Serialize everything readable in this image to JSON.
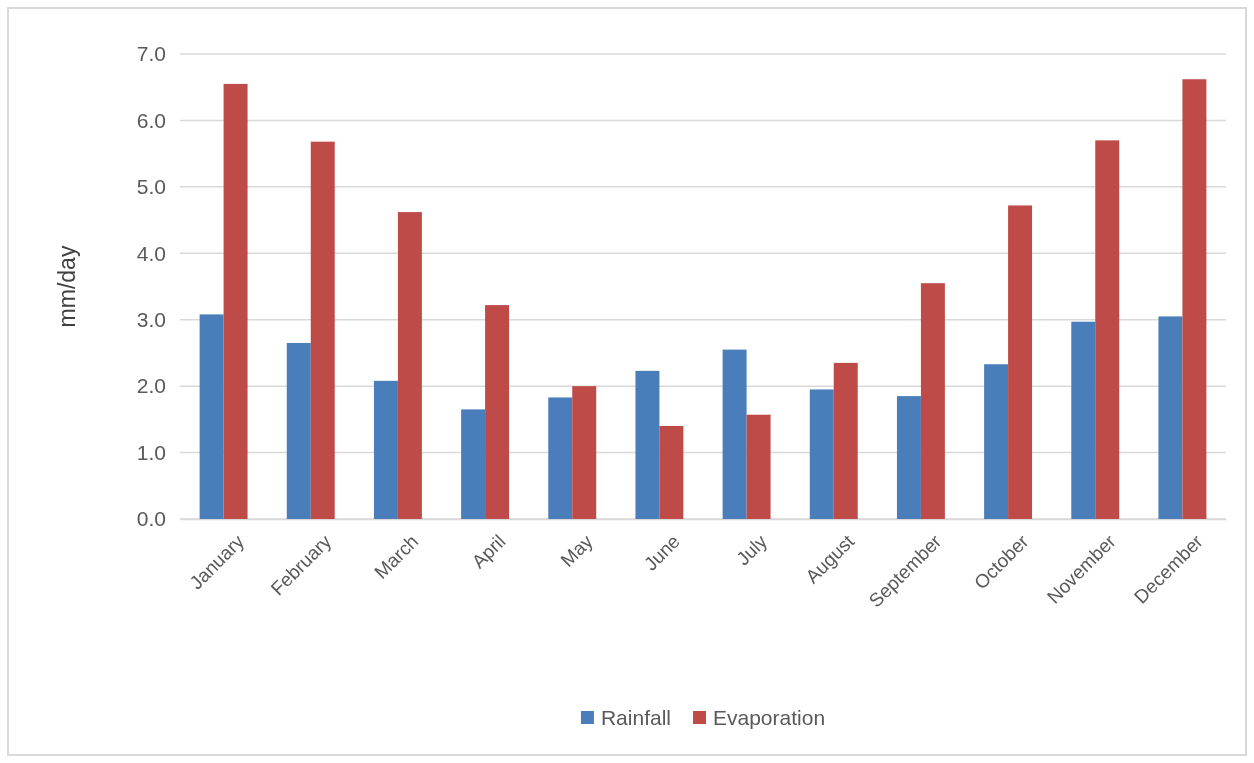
{
  "chart_data": {
    "type": "bar",
    "ylabel": "mm/day",
    "categories": [
      "January",
      "February",
      "March",
      "April",
      "May",
      "June",
      "July",
      "August",
      "September",
      "October",
      "November",
      "December"
    ],
    "series": [
      {
        "name": "Rainfall",
        "color": "#4a7ebb",
        "values": [
          3.08,
          2.65,
          2.08,
          1.65,
          1.83,
          2.23,
          2.55,
          1.95,
          1.85,
          2.33,
          2.97,
          3.05
        ]
      },
      {
        "name": "Evaporation",
        "color": "#be4b48",
        "values": [
          6.55,
          5.68,
          4.62,
          3.22,
          2.0,
          1.4,
          1.57,
          2.35,
          3.55,
          4.72,
          5.7,
          6.62
        ]
      }
    ],
    "ylim": [
      0,
      7
    ],
    "yticks": [
      {
        "value": 0,
        "label": "0.0"
      },
      {
        "value": 1,
        "label": "1.0"
      },
      {
        "value": 2,
        "label": "2.0"
      },
      {
        "value": 3,
        "label": "3.0"
      },
      {
        "value": 4,
        "label": "4.0"
      },
      {
        "value": 5,
        "label": "5.0"
      },
      {
        "value": 6,
        "label": "6.0"
      },
      {
        "value": 7,
        "label": "7.0"
      }
    ],
    "grid": "y",
    "legend": "bottom"
  }
}
